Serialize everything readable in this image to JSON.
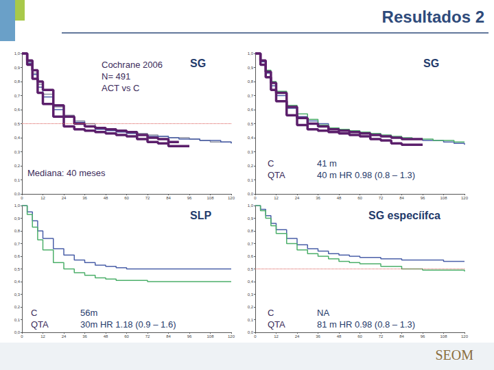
{
  "title": "Resultados 2",
  "logo": "SEOM",
  "chart_data": [
    {
      "type": "step",
      "title": "SG",
      "annotations": [
        {
          "rows": [
            [
              "Cochrane 2006"
            ],
            [
              "N= 491"
            ],
            [
              "ACT vs C"
            ]
          ]
        },
        {
          "rows": [
            [
              "Mediana: 40 meses"
            ]
          ]
        }
      ],
      "xlim": [
        0,
        120
      ],
      "xticks": [
        0,
        12,
        24,
        36,
        48,
        60,
        72,
        84,
        96,
        108,
        120
      ],
      "ylim": [
        0,
        1
      ],
      "yticks": [
        {
          "value": 0,
          "label": "0,0"
        },
        {
          "value": 0.1,
          "label": "0,1"
        },
        {
          "value": 0.2,
          "label": "0,2"
        },
        {
          "value": 0.3,
          "label": "0,3"
        },
        {
          "value": 0.4,
          "label": "0,4"
        },
        {
          "value": 0.5,
          "label": "0,5"
        },
        {
          "value": 0.6,
          "label": "0,6"
        },
        {
          "value": 0.7,
          "label": "0,7"
        },
        {
          "value": 0.8,
          "label": "0,8"
        },
        {
          "value": 0.9,
          "label": "0,9"
        },
        {
          "value": 1,
          "label": "1,0"
        }
      ],
      "grid": false,
      "hline": {
        "value": 0.5,
        "color": "#d9534f",
        "line_style": "dotted"
      },
      "series": [
        {
          "color": "#8a8fa0",
          "line_style": "solid",
          "x": [
            0,
            3,
            6,
            9,
            12,
            18,
            24,
            30,
            36,
            42,
            48,
            54,
            60,
            66,
            72,
            78,
            84,
            90,
            96,
            102,
            108,
            114,
            120
          ],
          "values": [
            1,
            0.94,
            0.86,
            0.78,
            0.71,
            0.62,
            0.56,
            0.52,
            0.5,
            0.47,
            0.46,
            0.45,
            0.44,
            0.43,
            0.42,
            0.41,
            0.4,
            0.4,
            0.39,
            0.38,
            0.37,
            0.37,
            0.36
          ]
        },
        {
          "color": "#4a5fa8",
          "line_style": "solid",
          "x": [
            0,
            3,
            6,
            9,
            12,
            18,
            24,
            30,
            36,
            42,
            48,
            54,
            60,
            66,
            72,
            78,
            84,
            90,
            96,
            102,
            108,
            114,
            120
          ],
          "values": [
            1,
            0.93,
            0.85,
            0.76,
            0.69,
            0.6,
            0.55,
            0.51,
            0.48,
            0.46,
            0.45,
            0.44,
            0.43,
            0.42,
            0.41,
            0.41,
            0.4,
            0.39,
            0.39,
            0.38,
            0.38,
            0.37,
            0.36
          ]
        },
        {
          "color": "#5b1f6b",
          "line_style": "thick",
          "x": [
            0,
            3,
            6,
            9,
            12,
            18,
            24,
            30,
            36,
            42,
            48,
            54,
            60,
            66,
            72,
            78,
            84,
            90
          ],
          "values": [
            1,
            0.95,
            0.88,
            0.8,
            0.74,
            0.63,
            0.55,
            0.5,
            0.48,
            0.47,
            0.46,
            0.45,
            0.44,
            0.42,
            0.4,
            0.39,
            0.37,
            0.37
          ]
        },
        {
          "color": "#5b1f6b",
          "line_style": "thick",
          "x": [
            0,
            3,
            6,
            9,
            12,
            18,
            24,
            30,
            36,
            42,
            48,
            54,
            60,
            66,
            72,
            78,
            84,
            90,
            96
          ],
          "values": [
            1,
            0.92,
            0.82,
            0.72,
            0.64,
            0.55,
            0.48,
            0.46,
            0.45,
            0.44,
            0.43,
            0.42,
            0.41,
            0.39,
            0.37,
            0.36,
            0.34,
            0.34,
            0.34
          ]
        }
      ]
    },
    {
      "type": "step",
      "title": "SG",
      "annotations": [
        {
          "rows": [
            [
              "C",
              "41 m"
            ],
            [
              "QTA",
              "40 m HR 0.98 (0.8 – 1.3)"
            ]
          ]
        }
      ],
      "xlim": [
        0,
        120
      ],
      "xticks": [
        0,
        12,
        24,
        36,
        48,
        60,
        72,
        84,
        96,
        108,
        120
      ],
      "ylim": [
        0,
        1
      ],
      "yticks": [
        {
          "value": 0,
          "label": "0,0"
        },
        {
          "value": 0.1,
          "label": "0,1"
        },
        {
          "value": 0.2,
          "label": "0,2"
        },
        {
          "value": 0.3,
          "label": "0,3"
        },
        {
          "value": 0.4,
          "label": "0,4"
        },
        {
          "value": 0.5,
          "label": "0,5"
        },
        {
          "value": 0.6,
          "label": "0,6"
        },
        {
          "value": 0.7,
          "label": "0,7"
        },
        {
          "value": 0.8,
          "label": "0,8"
        },
        {
          "value": 0.9,
          "label": "0,9"
        },
        {
          "value": 1,
          "label": "1,0"
        }
      ],
      "grid": false,
      "series": [
        {
          "color": "#4a5fa8",
          "line_style": "solid",
          "x": [
            0,
            3,
            6,
            9,
            12,
            18,
            24,
            30,
            36,
            42,
            48,
            54,
            60,
            66,
            72,
            78,
            84,
            90,
            96,
            102,
            108,
            114,
            120
          ],
          "values": [
            1,
            0.94,
            0.86,
            0.77,
            0.7,
            0.61,
            0.55,
            0.52,
            0.5,
            0.47,
            0.45,
            0.44,
            0.43,
            0.42,
            0.41,
            0.4,
            0.39,
            0.39,
            0.38,
            0.38,
            0.37,
            0.36,
            0.35
          ]
        },
        {
          "color": "#4caf6a",
          "line_style": "solid",
          "x": [
            0,
            3,
            6,
            9,
            12,
            18,
            24,
            30,
            36,
            42,
            48,
            54,
            60,
            66,
            72,
            78,
            84,
            90,
            96,
            102,
            108,
            114,
            120
          ],
          "values": [
            1,
            0.95,
            0.88,
            0.8,
            0.73,
            0.63,
            0.57,
            0.53,
            0.49,
            0.47,
            0.46,
            0.45,
            0.44,
            0.43,
            0.42,
            0.41,
            0.4,
            0.39,
            0.39,
            0.38,
            0.38,
            0.37,
            0.37
          ]
        },
        {
          "color": "#5b1f6b",
          "line_style": "thick",
          "x": [
            0,
            3,
            6,
            9,
            12,
            18,
            24,
            30,
            36,
            42,
            48,
            54,
            60,
            66,
            72,
            78,
            84,
            90,
            96
          ],
          "values": [
            1,
            0.95,
            0.87,
            0.79,
            0.72,
            0.62,
            0.54,
            0.5,
            0.48,
            0.46,
            0.45,
            0.44,
            0.43,
            0.42,
            0.41,
            0.4,
            0.39,
            0.39,
            0.39
          ]
        },
        {
          "color": "#5b1f6b",
          "line_style": "thick",
          "x": [
            0,
            3,
            6,
            9,
            12,
            18,
            24,
            30,
            36,
            42,
            48,
            54,
            60,
            66,
            72,
            78,
            84,
            90,
            96
          ],
          "values": [
            1,
            0.92,
            0.83,
            0.74,
            0.66,
            0.56,
            0.49,
            0.46,
            0.45,
            0.44,
            0.43,
            0.42,
            0.41,
            0.39,
            0.38,
            0.36,
            0.35,
            0.35,
            0.35
          ]
        }
      ]
    },
    {
      "type": "step",
      "title": "SLP",
      "annotations": [
        {
          "rows": [
            [
              "C",
              "56m"
            ],
            [
              "QTA",
              "30m HR 1.18 (0.9 – 1.6)"
            ]
          ]
        }
      ],
      "xlim": [
        0,
        120
      ],
      "xticks": [
        0,
        12,
        24,
        36,
        48,
        60,
        72,
        84,
        96,
        108,
        120
      ],
      "ylim": [
        0,
        1
      ],
      "yticks": [
        {
          "value": 0,
          "label": "0,0"
        },
        {
          "value": 0.1,
          "label": "0,1"
        },
        {
          "value": 0.2,
          "label": "0,2"
        },
        {
          "value": 0.3,
          "label": "0,3"
        },
        {
          "value": 0.4,
          "label": "0,4"
        },
        {
          "value": 0.5,
          "label": "0,5"
        },
        {
          "value": 0.6,
          "label": "0,6"
        },
        {
          "value": 0.7,
          "label": "0,7"
        },
        {
          "value": 0.8,
          "label": "0,8"
        },
        {
          "value": 0.9,
          "label": "0,9"
        },
        {
          "value": 1,
          "label": "1,0"
        }
      ],
      "grid": false,
      "series": [
        {
          "color": "#4a5fa8",
          "line_style": "solid",
          "x": [
            0,
            3,
            6,
            9,
            12,
            18,
            24,
            30,
            36,
            42,
            48,
            54,
            60,
            72,
            84,
            96,
            108,
            120
          ],
          "values": [
            1,
            0.95,
            0.88,
            0.8,
            0.74,
            0.66,
            0.61,
            0.57,
            0.55,
            0.53,
            0.52,
            0.51,
            0.5,
            0.5,
            0.5,
            0.5,
            0.5,
            0.5
          ]
        },
        {
          "color": "#4caf6a",
          "line_style": "solid",
          "x": [
            0,
            3,
            6,
            9,
            12,
            18,
            24,
            30,
            36,
            42,
            48,
            54,
            60,
            72,
            84,
            96,
            108,
            120
          ],
          "values": [
            1,
            0.93,
            0.83,
            0.73,
            0.65,
            0.55,
            0.5,
            0.47,
            0.45,
            0.43,
            0.42,
            0.41,
            0.41,
            0.4,
            0.4,
            0.4,
            0.4,
            0.4
          ]
        }
      ]
    },
    {
      "type": "step",
      "title": "SG especíifca",
      "annotations": [
        {
          "rows": [
            [
              "C",
              "NA"
            ],
            [
              "QTA",
              "81 m HR 0.98 (0.8 – 1.3)"
            ]
          ]
        }
      ],
      "xlim": [
        0,
        120
      ],
      "xticks": [
        0,
        12,
        24,
        36,
        48,
        60,
        72,
        84,
        96,
        108,
        120
      ],
      "ylim": [
        0,
        1
      ],
      "yticks": [
        {
          "value": 0,
          "label": "0,0"
        },
        {
          "value": 0.1,
          "label": "0,1"
        },
        {
          "value": 0.2,
          "label": "0,2"
        },
        {
          "value": 0.3,
          "label": "0,3"
        },
        {
          "value": 0.4,
          "label": "0,4"
        },
        {
          "value": 0.5,
          "label": "0,5"
        },
        {
          "value": 0.6,
          "label": "0,6"
        },
        {
          "value": 0.7,
          "label": "0,7"
        },
        {
          "value": 0.8,
          "label": "0,8"
        },
        {
          "value": 0.9,
          "label": "0,9"
        },
        {
          "value": 1,
          "label": "1,0"
        }
      ],
      "grid": false,
      "hline": {
        "value": 0.5,
        "color": "#d9534f",
        "line_style": "dotted"
      },
      "series": [
        {
          "color": "#4a5fa8",
          "line_style": "solid",
          "x": [
            0,
            3,
            6,
            9,
            12,
            18,
            24,
            30,
            36,
            42,
            48,
            54,
            60,
            72,
            84,
            96,
            108,
            120
          ],
          "values": [
            1,
            0.97,
            0.92,
            0.86,
            0.81,
            0.74,
            0.69,
            0.66,
            0.64,
            0.62,
            0.61,
            0.6,
            0.59,
            0.58,
            0.57,
            0.57,
            0.56,
            0.56
          ]
        },
        {
          "color": "#4caf6a",
          "line_style": "solid",
          "x": [
            0,
            3,
            6,
            9,
            12,
            18,
            24,
            30,
            36,
            42,
            48,
            54,
            60,
            72,
            84,
            96,
            108,
            120
          ],
          "values": [
            1,
            0.96,
            0.9,
            0.84,
            0.78,
            0.7,
            0.65,
            0.62,
            0.6,
            0.58,
            0.56,
            0.55,
            0.54,
            0.52,
            0.5,
            0.49,
            0.49,
            0.48
          ]
        }
      ]
    }
  ]
}
